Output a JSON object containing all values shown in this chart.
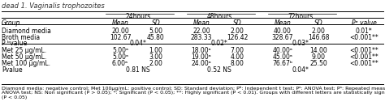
{
  "title": "dead 1. Vaginalis trophozoites",
  "time_headers": [
    "24hours",
    "48hours",
    "72hours"
  ],
  "col_headers": [
    "Group",
    "Mean",
    "SD",
    "Mean",
    "SD",
    "Mean",
    "SD",
    "Pᵃ value"
  ],
  "rows": [
    [
      "Diamond media",
      "20.00",
      "5.00",
      "22.00",
      "2.00",
      "40.00",
      "2.00",
      "0.01*"
    ],
    [
      "Broth media",
      "102.67",
      "45.80",
      "283.33",
      "126.42",
      "328.67",
      "146.68",
      "<0.001**"
    ],
    [
      "P ᵇvalue",
      "0.04*",
      "",
      "0.02*",
      "",
      "0.03*",
      "",
      ""
    ],
    [
      "Met 25 μg/mL.",
      "5.00ᵃ",
      "1.00",
      "18.00ᵃ",
      "7.00",
      "40.00ᵃ",
      "14.00",
      "<0.001**"
    ],
    [
      "Met 50 μg/mL.",
      "5.00ᵃ",
      "3.00",
      "19.00ᵃ",
      "4.00",
      "45.00ᵃ",
      "9.00",
      "<0.001**"
    ],
    [
      "Met 100 μg/mL.",
      "6.00ᵃ",
      "2.00",
      "24.00ᵃ",
      "8.00",
      "76.67ᵇ",
      "25.50",
      "<0.001**"
    ],
    [
      "Pvalue",
      "0.81 NS",
      "",
      "0.52 NS",
      "",
      "0.04*",
      "",
      ""
    ]
  ],
  "footnote1": "Diamond media: negative control; Met 100μg/mL: positive control; SD: Standard deviation; Pᵇ: Independent t test; Pᵃ: ANOVA test; Pᵃ: Repeated measure",
  "footnote2": "ANOVA test; NS: Non significant (P > 0.05); *: Significant (P < 0.05); **: Highly significant (P < 0.01). Groups with different letters are statistically significant",
  "footnote3": "(P < 0.05)",
  "bg_color": "#ffffff",
  "font_size": 5.5,
  "title_font_size": 6.0,
  "footnote_font_size": 4.5
}
